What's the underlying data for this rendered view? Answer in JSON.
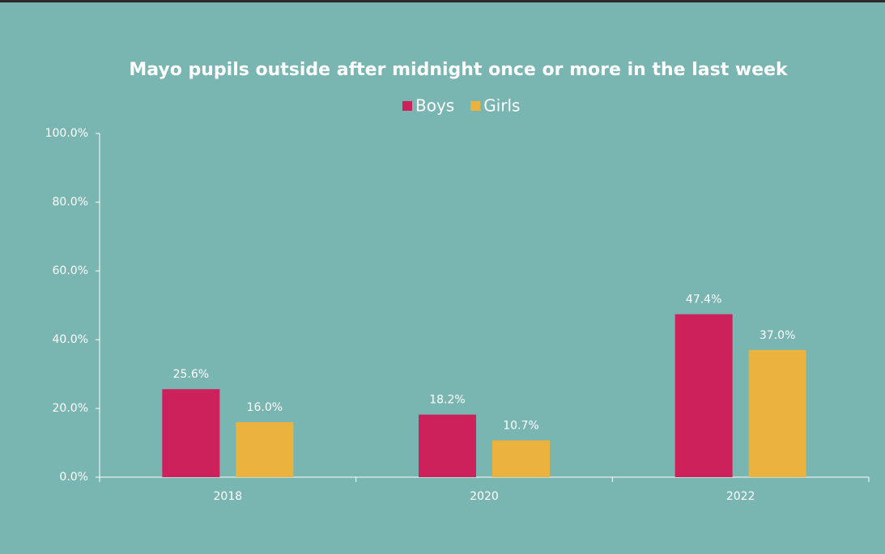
{
  "chart_data": {
    "type": "bar",
    "title": "Mayo pupils outside after midnight once or more in the last week",
    "categories": [
      "2018",
      "2020",
      "2022"
    ],
    "series": [
      {
        "name": "Boys",
        "color": "#cc215a",
        "values": [
          25.6,
          18.2,
          47.4
        ],
        "value_labels": [
          "25.6%",
          "18.2%",
          "47.4%"
        ]
      },
      {
        "name": "Girls",
        "color": "#ebb33e",
        "values": [
          16.0,
          10.7,
          37.0
        ],
        "value_labels": [
          "16.0%",
          "10.7%",
          "37.0%"
        ]
      }
    ],
    "ylim": [
      0,
      100
    ],
    "yticks": [
      {
        "value": 0,
        "label": "0.0%"
      },
      {
        "value": 20,
        "label": "20.0%"
      },
      {
        "value": 40,
        "label": "40.0%"
      },
      {
        "value": 60,
        "label": "60.0%"
      },
      {
        "value": 80,
        "label": "80.0%"
      },
      {
        "value": 100,
        "label": "100.0%"
      }
    ],
    "legend": "top",
    "grid": false
  }
}
